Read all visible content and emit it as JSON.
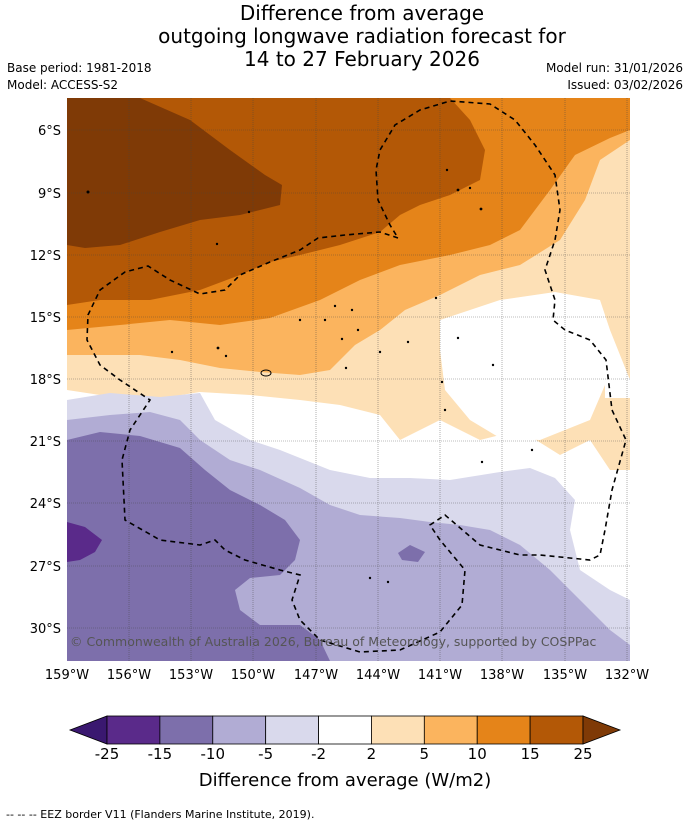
{
  "title_lines": [
    "Difference from average",
    "outgoing longwave radiation forecast for",
    "14 to 27 February 2026"
  ],
  "base_period": "Base period: 1981-2018",
  "model": "Model: ACCESS-S2",
  "model_run": "Model run: 31/01/2026",
  "issued": "Issued: 03/02/2026",
  "copyright": "© Commonwealth of Australia 2026, Bureau of Meteorology, supported by COSPPac",
  "lat_labels": [
    "6°S",
    "9°S",
    "12°S",
    "15°S",
    "18°S",
    "21°S",
    "24°S",
    "27°S",
    "30°S"
  ],
  "lon_labels": [
    "159°W",
    "156°W",
    "153°W",
    "150°W",
    "147°W",
    "144°W",
    "141°W",
    "138°W",
    "135°W",
    "132°W"
  ],
  "colorbar": {
    "ticks": [
      "-25",
      "-15",
      "-10",
      "-5",
      "-2",
      "2",
      "5",
      "10",
      "15",
      "25"
    ],
    "colors": [
      "#3a1870",
      "#5a2a8a",
      "#7d6fab",
      "#b1acd4",
      "#d9d9ec",
      "#ffffff",
      "#fde0b6",
      "#fbb45e",
      "#e58419",
      "#b35806",
      "#7f3a06"
    ],
    "title": "Difference from average (W/m2)"
  },
  "footnote": "-- -- -- EEZ border V11 (Flanders Marine Institute, 2019)."
}
